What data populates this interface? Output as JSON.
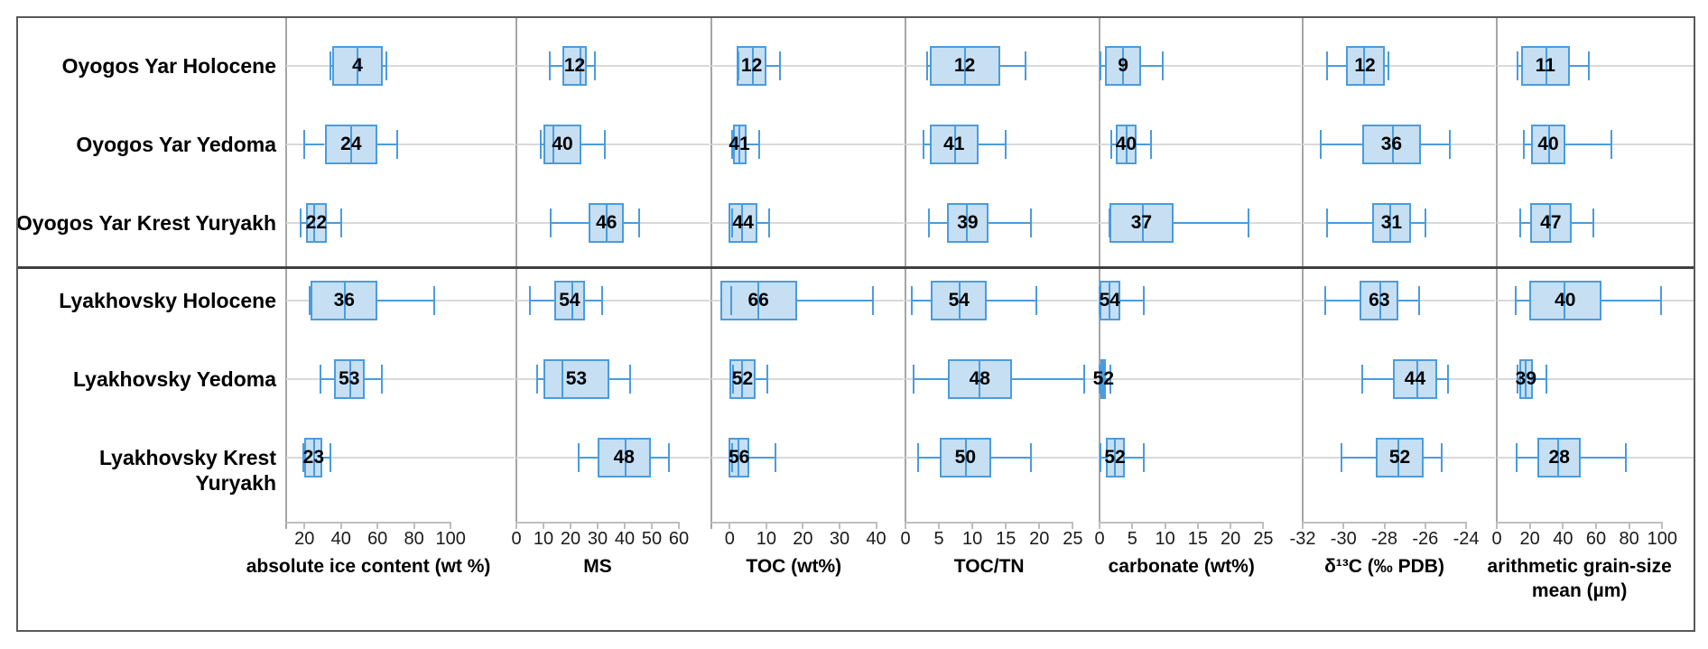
{
  "figure_title": "",
  "colors": {
    "box_fill": "#c6dff3",
    "box_stroke": "#4a9cde",
    "gridline": "#d9d9d9",
    "axis_line": "#bfbfbf",
    "panel_separator": "#a6a6a6",
    "section_divider": "#3f3f3f",
    "outer_border": "#595959",
    "text": "#000000"
  },
  "rows": [
    {
      "label": "Oyogos Yar Holocene",
      "group": "Oyogos Yar"
    },
    {
      "label": "Oyogos Yar Yedoma",
      "group": "Oyogos Yar"
    },
    {
      "label": "Oyogos Yar Krest Yuryakh",
      "group": "Oyogos Yar"
    },
    {
      "label": "Lyakhovsky Holocene",
      "group": "Lyakhovsky"
    },
    {
      "label": "Lyakhovsky Yedoma",
      "group": "Lyakhovsky"
    },
    {
      "label": "Lyakhovsky Krest Yuryakh",
      "group": "Lyakhovsky"
    }
  ],
  "chart_data": [
    {
      "type": "boxplot",
      "orientation": "horizontal",
      "title": "absolute ice content (wt %)",
      "ticks": [
        20,
        40,
        60,
        80,
        100
      ],
      "range": [
        10,
        136
      ],
      "grid": true,
      "boxes": [
        {
          "row": "Oyogos Yar Holocene",
          "n": 4,
          "whisker_low": 34,
          "q1": 35,
          "median": 49,
          "q3": 63,
          "whisker_high": 65
        },
        {
          "row": "Oyogos Yar Yedoma",
          "n": 24,
          "whisker_low": 20,
          "q1": 31,
          "median": 45.5,
          "q3": 60,
          "whisker_high": 71
        },
        {
          "row": "Oyogos Yar Krest Yuryakh",
          "n": 22,
          "whisker_low": 18,
          "q1": 21,
          "median": 25.5,
          "q3": 32,
          "whisker_high": 40
        },
        {
          "row": "Lyakhovsky Holocene",
          "n": 36,
          "whisker_low": 23,
          "q1": 23.5,
          "median": 42,
          "q3": 60,
          "whisker_high": 91
        },
        {
          "row": "Lyakhovsky Yedoma",
          "n": 53,
          "whisker_low": 29,
          "q1": 36,
          "median": 45,
          "q3": 53,
          "whisker_high": 62.5
        },
        {
          "row": "Lyakhovsky Krest Yuryakh",
          "n": 23,
          "whisker_low": 19.5,
          "q1": 20,
          "median": 25.5,
          "q3": 30,
          "whisker_high": 34
        }
      ]
    },
    {
      "type": "boxplot",
      "orientation": "horizontal",
      "title": "MS",
      "ticks": [
        0,
        10,
        20,
        30,
        40,
        50,
        60
      ],
      "range": [
        0,
        72
      ],
      "grid": true,
      "boxes": [
        {
          "row": "Oyogos Yar Holocene",
          "n": 12,
          "whisker_low": 12.3,
          "q1": 17,
          "median": 23.5,
          "q3": 26,
          "whisker_high": 29
        },
        {
          "row": "Oyogos Yar Yedoma",
          "n": 40,
          "whisker_low": 9,
          "q1": 10,
          "median": 13.7,
          "q3": 24,
          "whisker_high": 32.6
        },
        {
          "row": "Oyogos Yar Krest Yuryakh",
          "n": 46,
          "whisker_low": 12.6,
          "q1": 26.7,
          "median": 33.3,
          "q3": 39.8,
          "whisker_high": 45.3
        },
        {
          "row": "Lyakhovsky Holocene",
          "n": 54,
          "whisker_low": 5,
          "q1": 14,
          "median": 20.7,
          "q3": 25.3,
          "whisker_high": 31.8
        },
        {
          "row": "Lyakhovsky Yedoma",
          "n": 53,
          "whisker_low": 7.6,
          "q1": 10.1,
          "median": 17,
          "q3": 34.2,
          "whisker_high": 42
        },
        {
          "row": "Lyakhovsky Krest Yuryakh",
          "n": 48,
          "whisker_low": 23,
          "q1": 30,
          "median": 40.3,
          "q3": 49.5,
          "whisker_high": 56.2
        }
      ]
    },
    {
      "type": "boxplot",
      "orientation": "horizontal",
      "title": "TOC (wt%)",
      "ticks": [
        0,
        10,
        20,
        30,
        40
      ],
      "range": [
        -5,
        48
      ],
      "grid": true,
      "boxes": [
        {
          "row": "Oyogos Yar Holocene",
          "n": 12,
          "whisker_low": 2.4,
          "q1": 1.9,
          "median": 6.4,
          "q3": 10.1,
          "whisker_high": 13.8
        },
        {
          "row": "Oyogos Yar Yedoma",
          "n": 41,
          "whisker_low": 0.6,
          "q1": 0.8,
          "median": 2.7,
          "q3": 4.5,
          "whisker_high": 8
        },
        {
          "row": "Oyogos Yar Krest Yuryakh",
          "n": 44,
          "whisker_low": 0.6,
          "q1": -0.2,
          "median": 3.5,
          "q3": 7.5,
          "whisker_high": 10.8
        },
        {
          "row": "Lyakhovsky Holocene",
          "n": 66,
          "whisker_low": 0.4,
          "q1": -2.6,
          "median": 7.9,
          "q3": 18.3,
          "whisker_high": 39.2
        },
        {
          "row": "Lyakhovsky Yedoma",
          "n": 52,
          "whisker_low": 0.8,
          "q1": 0,
          "median": 3.3,
          "q3": 7,
          "whisker_high": 10.4
        },
        {
          "row": "Lyakhovsky Krest Yuryakh",
          "n": 56,
          "whisker_low": 0.6,
          "q1": -0.2,
          "median": 2.5,
          "q3": 5.3,
          "whisker_high": 12.5
        }
      ]
    },
    {
      "type": "boxplot",
      "orientation": "horizontal",
      "title": "TOC/TN",
      "ticks": [
        0,
        5,
        10,
        15,
        20,
        25
      ],
      "range": [
        0,
        29
      ],
      "grid": true,
      "boxes": [
        {
          "row": "Oyogos Yar Holocene",
          "n": 12,
          "whisker_low": 3.3,
          "q1": 3.6,
          "median": 8.9,
          "q3": 14.1,
          "whisker_high": 18
        },
        {
          "row": "Oyogos Yar Yedoma",
          "n": 41,
          "whisker_low": 2.7,
          "q1": 3.6,
          "median": 7.4,
          "q3": 10.9,
          "whisker_high": 15
        },
        {
          "row": "Oyogos Yar Krest Yuryakh",
          "n": 39,
          "whisker_low": 3.5,
          "q1": 6.2,
          "median": 9.2,
          "q3": 12.4,
          "whisker_high": 18.7
        },
        {
          "row": "Lyakhovsky Holocene",
          "n": 54,
          "whisker_low": 1,
          "q1": 3.8,
          "median": 8.1,
          "q3": 12.2,
          "whisker_high": 19.5
        },
        {
          "row": "Lyakhovsky Yedoma",
          "n": 48,
          "whisker_low": 1.2,
          "q1": 6.3,
          "median": 11.1,
          "q3": 15.9,
          "whisker_high": 26.7
        },
        {
          "row": "Lyakhovsky Krest Yuryakh",
          "n": 50,
          "whisker_low": 1.9,
          "q1": 5.1,
          "median": 9,
          "q3": 12.8,
          "whisker_high": 18.8
        }
      ]
    },
    {
      "type": "boxplot",
      "orientation": "horizontal",
      "title": "carbonate (wt%)",
      "ticks": [
        0,
        5,
        10,
        15,
        20,
        25
      ],
      "range": [
        0,
        31
      ],
      "grid": true,
      "boxes": [
        {
          "row": "Oyogos Yar Holocene",
          "n": 9,
          "whisker_low": 0.2,
          "q1": 0.8,
          "median": 3.6,
          "q3": 6.4,
          "whisker_high": 9.7
        },
        {
          "row": "Oyogos Yar Yedoma",
          "n": 40,
          "whisker_low": 1.8,
          "q1": 2.5,
          "median": 4.1,
          "q3": 5.6,
          "whisker_high": 7.9
        },
        {
          "row": "Oyogos Yar Krest Yuryakh",
          "n": 37,
          "whisker_low": 1.5,
          "q1": 1.5,
          "median": 6.6,
          "q3": 11.3,
          "whisker_high": 22.8
        },
        {
          "row": "Lyakhovsky Holocene",
          "n": 54,
          "whisker_low": 0,
          "q1": 0,
          "median": 1.5,
          "q3": 3.1,
          "whisker_high": 6.7
        },
        {
          "row": "Lyakhovsky Yedoma",
          "n": 52,
          "whisker_low": 0,
          "q1": 0.2,
          "median": 0.6,
          "q3": 1,
          "whisker_high": 1.7
        },
        {
          "row": "Lyakhovsky Krest Yuryakh",
          "n": 52,
          "whisker_low": 0.2,
          "q1": 0.9,
          "median": 2.4,
          "q3": 3.8,
          "whisker_high": 6.8
        }
      ]
    },
    {
      "type": "boxplot",
      "orientation": "horizontal",
      "title": "δ¹³C (‰ PDB)",
      "ticks": [
        -32,
        -30,
        -28,
        -26,
        -24
      ],
      "range": [
        -32,
        -22.5
      ],
      "grid": true,
      "boxes": [
        {
          "row": "Oyogos Yar Holocene",
          "n": 12,
          "whisker_low": -30.8,
          "q1": -29.9,
          "median": -29,
          "q3": -28,
          "whisker_high": -27.8
        },
        {
          "row": "Oyogos Yar Yedoma",
          "n": 36,
          "whisker_low": -31.1,
          "q1": -29.1,
          "median": -27.6,
          "q3": -26.2,
          "whisker_high": -24.8
        },
        {
          "row": "Oyogos Yar Krest Yuryakh",
          "n": 31,
          "whisker_low": -30.8,
          "q1": -28.6,
          "median": -27.7,
          "q3": -26.7,
          "whisker_high": -26
        },
        {
          "row": "Lyakhovsky Holocene",
          "n": 63,
          "whisker_low": -30.9,
          "q1": -29.2,
          "median": -28.2,
          "q3": -27.3,
          "whisker_high": -26.3
        },
        {
          "row": "Lyakhovsky Yedoma",
          "n": 44,
          "whisker_low": -29.1,
          "q1": -27.6,
          "median": -26.4,
          "q3": -25.4,
          "whisker_high": -24.9
        },
        {
          "row": "Lyakhovsky Krest Yuryakh",
          "n": 52,
          "whisker_low": -30.1,
          "q1": -28.4,
          "median": -27.3,
          "q3": -26.1,
          "whisker_high": -25.2
        }
      ]
    },
    {
      "type": "boxplot",
      "orientation": "horizontal",
      "title": "arithmetic grain-size mean (µm)",
      "ticks": [
        0,
        20,
        40,
        60,
        80,
        100
      ],
      "range": [
        0,
        120
      ],
      "grid": true,
      "boxes": [
        {
          "row": "Oyogos Yar Holocene",
          "n": 11,
          "whisker_low": 12.3,
          "q1": 14.6,
          "median": 30.2,
          "q3": 44.2,
          "whisker_high": 55.8
        },
        {
          "row": "Oyogos Yar Yedoma",
          "n": 40,
          "whisker_low": 16.4,
          "q1": 20.7,
          "median": 31.5,
          "q3": 41.5,
          "whisker_high": 69.5
        },
        {
          "row": "Oyogos Yar Krest Yuryakh",
          "n": 47,
          "whisker_low": 14.3,
          "q1": 20.1,
          "median": 32,
          "q3": 45.2,
          "whisker_high": 58.1
        },
        {
          "row": "Lyakhovsky Holocene",
          "n": 40,
          "whisker_low": 11.3,
          "q1": 19.6,
          "median": 41.1,
          "q3": 63.1,
          "whisker_high": 99.2
        },
        {
          "row": "Lyakhovsky Yedoma",
          "n": 39,
          "whisker_low": 12.3,
          "q1": 13.4,
          "median": 17.4,
          "q3": 21.9,
          "whisker_high": 30.2
        },
        {
          "row": "Lyakhovsky Krest Yuryakh",
          "n": 28,
          "whisker_low": 11.9,
          "q1": 24.7,
          "median": 37.1,
          "q3": 50.8,
          "whisker_high": 78.2
        }
      ]
    }
  ]
}
